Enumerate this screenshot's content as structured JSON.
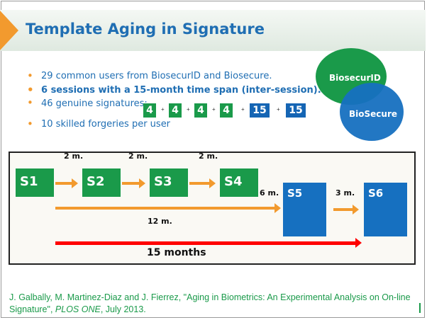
{
  "slide": {
    "title": "Template Aging in Signature",
    "bullets": [
      "29 common users from BiosecurID and Biosecure.",
      "6 sessions with a 15-month time span (inter-session).",
      "46 genuine signatures:",
      "10 skilled forgeries per user"
    ],
    "genuine_breakdown": [
      "4",
      "4",
      "4",
      "4",
      "15",
      "15"
    ],
    "plus_sign": "+",
    "venn": {
      "left_label": "BiosecurID",
      "right_label": "BioSecure"
    },
    "colors": {
      "title": "#1f6eb3",
      "accent": "#f29a2e",
      "green": "#1a9a4a",
      "blue": "#1670c0",
      "red": "#ff0000"
    }
  },
  "timeline": {
    "sessions": [
      "S1",
      "S2",
      "S3",
      "S4",
      "S5",
      "S6"
    ],
    "intervals": [
      "2 m.",
      "2 m.",
      "2 m.",
      "6 m.",
      "3 m.",
      "12 m."
    ],
    "total": "15 months"
  },
  "citation": {
    "text": "J. Galbally, M. Martinez-Diaz and J. Fierrez, \"Aging in Biometrics: An Experimental Analysis on On-line Signature\", ",
    "journal": "PLOS ONE",
    "date": ", July 2013."
  }
}
